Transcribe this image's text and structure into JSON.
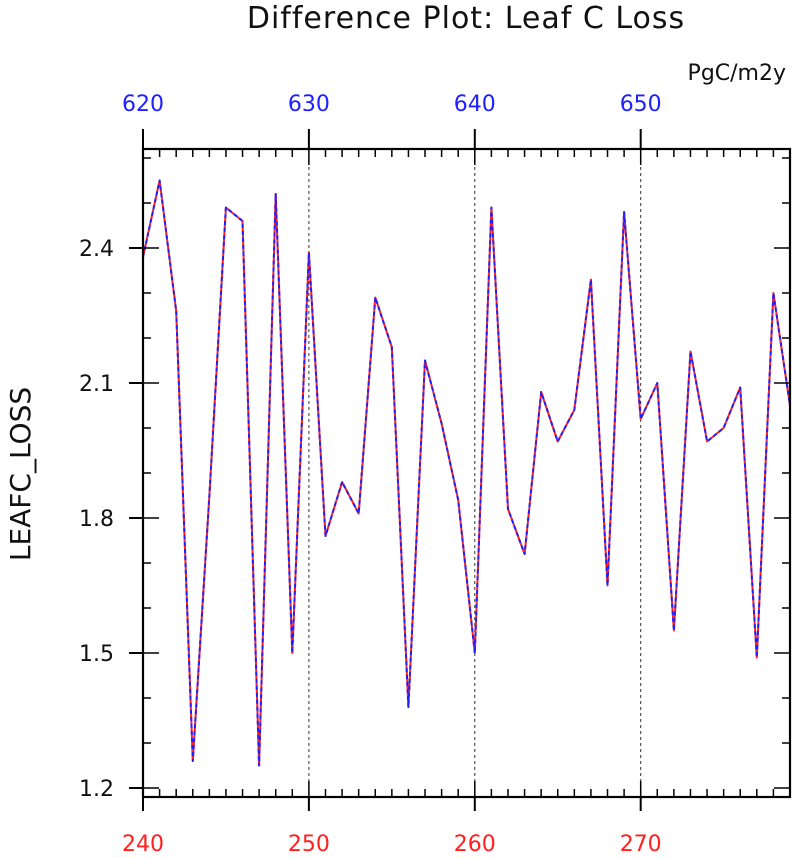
{
  "chart_data": {
    "type": "line",
    "title": "Difference Plot: Leaf C Loss",
    "units": "PgC/m2y",
    "xlabel": "",
    "ylabel": "LEAFC_LOSS",
    "xlim": [
      240,
      279
    ],
    "ylim": [
      1.18,
      2.62
    ],
    "bottom_axis": {
      "ticks": [
        240,
        250,
        260,
        270
      ],
      "tick_labels": [
        "240",
        "250",
        "260",
        "270"
      ],
      "color": "#ff2020"
    },
    "top_axis": {
      "ticks": [
        620,
        630,
        640,
        650
      ],
      "tick_labels": [
        "620",
        "630",
        "640",
        "650"
      ],
      "color": "#2020ff"
    },
    "yticks": [
      1.2,
      1.5,
      1.8,
      2.1,
      2.4
    ],
    "ytick_labels": [
      "1.2",
      "1.5",
      "1.8",
      "2.1",
      "2.4"
    ],
    "grid": "vertical dashed lines at major x ticks",
    "x": [
      240,
      241,
      242,
      243,
      244,
      245,
      246,
      247,
      248,
      249,
      250,
      251,
      252,
      253,
      254,
      255,
      256,
      257,
      258,
      259,
      260,
      261,
      262,
      263,
      264,
      265,
      266,
      267,
      268,
      269,
      270,
      271,
      272,
      273,
      274,
      275,
      276,
      277,
      278,
      279
    ],
    "series": [
      {
        "color": "#ff2020",
        "style": "solid",
        "values": [
          2.38,
          2.55,
          2.26,
          1.26,
          1.85,
          2.49,
          2.46,
          1.25,
          2.52,
          1.5,
          2.39,
          1.76,
          1.88,
          1.81,
          2.29,
          2.18,
          1.38,
          2.15,
          2.01,
          1.84,
          1.5,
          2.49,
          1.82,
          1.72,
          2.08,
          1.97,
          2.04,
          2.33,
          1.65,
          2.48,
          2.02,
          2.1,
          1.55,
          2.17,
          1.97,
          2.0,
          2.09,
          1.49,
          2.3,
          2.05
        ]
      },
      {
        "color": "#2020ff",
        "style": "dashed",
        "values": [
          2.38,
          2.55,
          2.26,
          1.26,
          1.85,
          2.49,
          2.46,
          1.25,
          2.52,
          1.5,
          2.39,
          1.76,
          1.88,
          1.81,
          2.29,
          2.18,
          1.38,
          2.15,
          2.01,
          1.84,
          1.5,
          2.49,
          1.82,
          1.72,
          2.08,
          1.97,
          2.04,
          2.33,
          1.65,
          2.48,
          2.02,
          2.1,
          1.55,
          2.17,
          1.97,
          2.0,
          2.09,
          1.49,
          2.3,
          2.05
        ]
      }
    ]
  }
}
